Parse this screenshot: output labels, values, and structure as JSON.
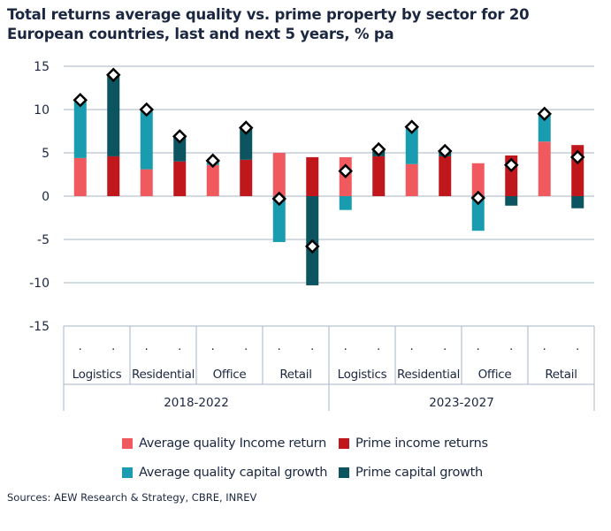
{
  "title": "Total returns average quality vs. prime property by sector for 20 European countries, last and next 5 years, % pa",
  "source": "Sources: AEW Research & Strategy, CBRE, INREV",
  "colors": {
    "avg_income": "#f05a5e",
    "prime_income": "#c0171c",
    "avg_capital": "#1a9cb0",
    "prime_capital": "#0c5460",
    "marker_fill": "#ffffff",
    "marker_stroke": "#000000",
    "axis": "#a9b6c6",
    "text": "#1b2740"
  },
  "legend": [
    {
      "label": "Average quality Income return",
      "color_key": "avg_income"
    },
    {
      "label": "Prime income returns",
      "color_key": "prime_income"
    },
    {
      "label": "Average quality capital growth",
      "color_key": "avg_capital"
    },
    {
      "label": "Prime capital growth",
      "color_key": "prime_capital"
    }
  ],
  "chart_data": {
    "type": "bar",
    "stacked": true,
    "title": "Total returns average quality vs. prime property by sector for 20 European countries, last and next 5 years, % pa",
    "ylim": [
      -15,
      15
    ],
    "yticks": [
      15,
      10,
      5,
      0,
      -5,
      -10,
      -15
    ],
    "grid": true,
    "legend_position": "bottom",
    "periods": [
      {
        "label": "2018-2022",
        "sectors": [
          "Logistics",
          "Residential",
          "Office",
          "Retail"
        ]
      },
      {
        "label": "2023-2027",
        "sectors": [
          "Logistics",
          "Residential",
          "Office",
          "Retail"
        ]
      }
    ],
    "category_tick_label": ".",
    "bars": [
      {
        "period": "2018-2022",
        "sector": "Logistics",
        "quality": "average",
        "income": 4.4,
        "capital": 6.6,
        "total": 11.1
      },
      {
        "period": "2018-2022",
        "sector": "Logistics",
        "quality": "prime",
        "income": 4.6,
        "capital": 9.4,
        "total": 14.0
      },
      {
        "period": "2018-2022",
        "sector": "Residential",
        "quality": "average",
        "income": 3.1,
        "capital": 6.9,
        "total": 10.0
      },
      {
        "period": "2018-2022",
        "sector": "Residential",
        "quality": "prime",
        "income": 4.0,
        "capital": 2.9,
        "total": 6.9
      },
      {
        "period": "2018-2022",
        "sector": "Office",
        "quality": "average",
        "income": 3.6,
        "capital": 0.4,
        "total": 4.1
      },
      {
        "period": "2018-2022",
        "sector": "Office",
        "quality": "prime",
        "income": 4.2,
        "capital": 3.8,
        "total": 7.9
      },
      {
        "period": "2018-2022",
        "sector": "Retail",
        "quality": "average",
        "income": 5.0,
        "capital": -5.3,
        "total": -0.3
      },
      {
        "period": "2018-2022",
        "sector": "Retail",
        "quality": "prime",
        "income": 4.5,
        "capital": -10.3,
        "total": -5.8
      },
      {
        "period": "2023-2027",
        "sector": "Logistics",
        "quality": "average",
        "income": 4.5,
        "capital": -1.6,
        "total": 2.9
      },
      {
        "period": "2023-2027",
        "sector": "Logistics",
        "quality": "prime",
        "income": 4.6,
        "capital": 0.8,
        "total": 5.4
      },
      {
        "period": "2023-2027",
        "sector": "Residential",
        "quality": "average",
        "income": 3.7,
        "capital": 4.3,
        "total": 8.0
      },
      {
        "period": "2023-2027",
        "sector": "Residential",
        "quality": "prime",
        "income": 4.6,
        "capital": 0.6,
        "total": 5.2
      },
      {
        "period": "2023-2027",
        "sector": "Office",
        "quality": "average",
        "income": 3.8,
        "capital": -4.0,
        "total": -0.2
      },
      {
        "period": "2023-2027",
        "sector": "Office",
        "quality": "prime",
        "income": 4.7,
        "capital": -1.1,
        "total": 3.6
      },
      {
        "period": "2023-2027",
        "sector": "Retail",
        "quality": "average",
        "income": 6.3,
        "capital": 3.2,
        "total": 9.5
      },
      {
        "period": "2023-2027",
        "sector": "Retail",
        "quality": "prime",
        "income": 5.9,
        "capital": -1.4,
        "total": 4.5
      }
    ]
  }
}
